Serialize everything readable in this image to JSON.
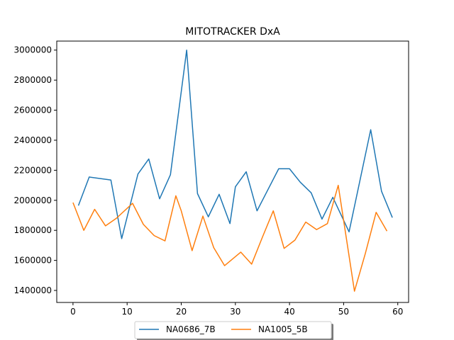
{
  "chart_data": {
    "type": "line",
    "title": "MITOTRACKER DxA",
    "xlabel": "",
    "ylabel": "",
    "xlim": [
      -3,
      62
    ],
    "ylim": [
      1320000,
      3060000
    ],
    "xticks": [
      0,
      10,
      20,
      30,
      40,
      50,
      60
    ],
    "yticks": [
      1400000,
      1600000,
      1800000,
      2000000,
      2200000,
      2400000,
      2600000,
      2800000,
      3000000
    ],
    "xtick_labels": [
      "0",
      "10",
      "20",
      "30",
      "40",
      "50",
      "60"
    ],
    "ytick_labels": [
      "1400000",
      "1600000",
      "1800000",
      "2000000",
      "2200000",
      "2400000",
      "2600000",
      "2800000",
      "3000000"
    ],
    "grid": false,
    "legend_position": "bottom-center",
    "series": [
      {
        "name": "NA0686_7B",
        "color": "#1f77b4",
        "x": [
          1,
          3,
          7,
          9,
          12,
          14,
          16,
          18,
          21,
          23,
          25,
          27,
          29,
          30,
          32,
          34,
          36,
          38,
          40,
          42,
          44,
          46,
          48,
          51,
          53,
          55,
          57,
          59
        ],
        "y": [
          1965000,
          2155000,
          2135000,
          1745000,
          2175000,
          2275000,
          2010000,
          2170000,
          3000000,
          2045000,
          1890000,
          2040000,
          1845000,
          2090000,
          2190000,
          1930000,
          2070000,
          2210000,
          2210000,
          2120000,
          2050000,
          1875000,
          2020000,
          1790000,
          2130000,
          2470000,
          2060000,
          1885000
        ]
      },
      {
        "name": "NA1005_5B",
        "color": "#ff7f0e",
        "x": [
          0,
          2,
          4,
          6,
          8,
          11,
          13,
          15,
          17,
          19,
          20,
          22,
          24,
          26,
          28,
          31,
          33,
          35,
          37,
          39,
          41,
          43,
          45,
          47,
          49,
          52,
          54,
          56,
          58
        ],
        "y": [
          1985000,
          1800000,
          1940000,
          1830000,
          1880000,
          1980000,
          1840000,
          1765000,
          1730000,
          2030000,
          1930000,
          1665000,
          1895000,
          1685000,
          1565000,
          1655000,
          1575000,
          1755000,
          1930000,
          1680000,
          1735000,
          1855000,
          1805000,
          1845000,
          2100000,
          1395000,
          1645000,
          1920000,
          1795000
        ]
      }
    ]
  }
}
